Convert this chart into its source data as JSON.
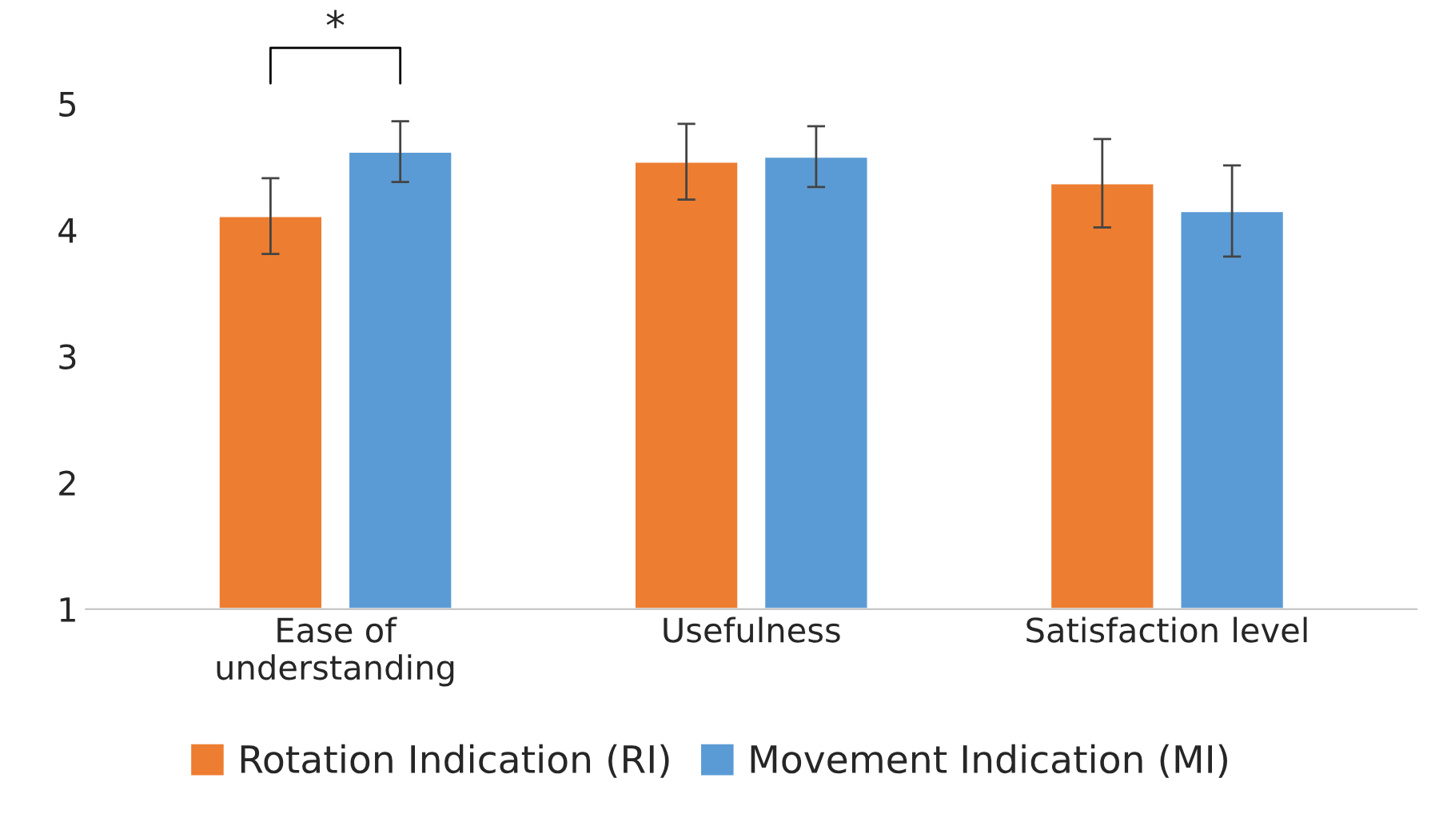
{
  "chart_data": {
    "type": "bar",
    "categories": [
      "Ease of\nunderstanding",
      "Usefulness",
      "Satisfaction level"
    ],
    "series": [
      {
        "name": "Rotation Indication (RI)",
        "color": "#ed7d31",
        "values": [
          4.11,
          4.54,
          4.37
        ],
        "errors": [
          0.3,
          0.3,
          0.35
        ]
      },
      {
        "name": "Movement Indication (MI)",
        "color": "#5b9bd5",
        "values": [
          4.62,
          4.58,
          4.15
        ],
        "errors": [
          0.24,
          0.24,
          0.36
        ]
      }
    ],
    "ylim": [
      1,
      5
    ],
    "yticks": [
      1,
      2,
      3,
      4,
      5
    ],
    "grid": false,
    "legend": "bottom",
    "annotations": [
      "*"
    ]
  }
}
